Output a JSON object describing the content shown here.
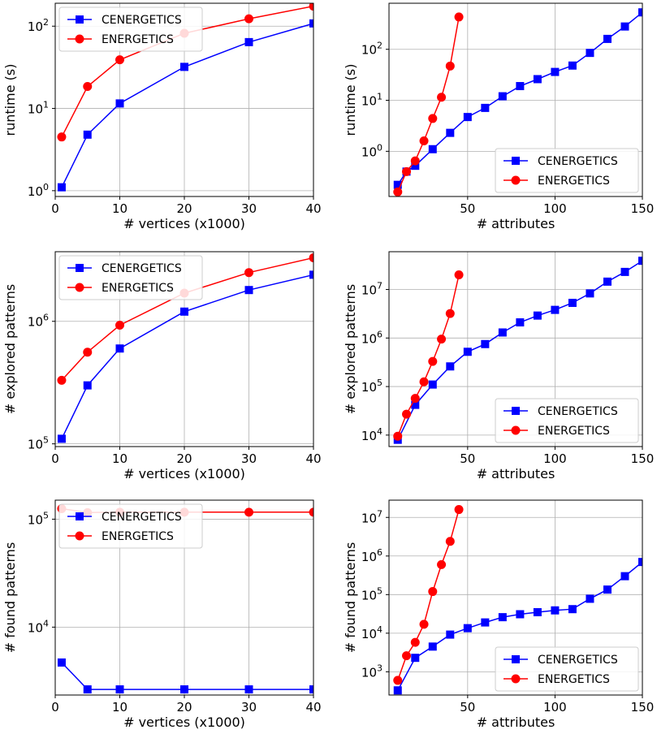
{
  "colors": {
    "cenergetics": "#0000ff",
    "energetics": "#ff0000",
    "grid": "#b0b0b0"
  },
  "chart_data": [
    {
      "type": "line",
      "xlabel": "# vertices (x1000)",
      "ylabel": "runtime (s)",
      "yscale": "log",
      "xlim": [
        0,
        40
      ],
      "ylim": [
        0.85,
        190
      ],
      "xticks": [
        0,
        10,
        20,
        30,
        40
      ],
      "yticks": [
        {
          "v": 1,
          "exp": "0"
        },
        {
          "v": 10,
          "exp": "1"
        },
        {
          "v": 100,
          "exp": "2"
        }
      ],
      "legend_loc": "upper-left",
      "grid": true,
      "series": [
        {
          "name": "CENERGETICS",
          "color": "#0000ff",
          "marker": "square",
          "x": [
            1,
            5,
            10,
            20,
            30,
            40
          ],
          "y": [
            1.1,
            4.8,
            11.5,
            32,
            64,
            108
          ]
        },
        {
          "name": "ENERGETICS",
          "color": "#ff0000",
          "marker": "circle",
          "x": [
            1,
            5,
            10,
            20,
            30,
            40
          ],
          "y": [
            4.5,
            18.5,
            39,
            82,
            123,
            175
          ]
        }
      ]
    },
    {
      "type": "line",
      "xlabel": "# attributes",
      "ylabel": "runtime (s)",
      "yscale": "log",
      "xlim": [
        5,
        150
      ],
      "ylim": [
        0.13,
        800
      ],
      "xticks": [
        50,
        100,
        150
      ],
      "yticks": [
        {
          "v": 1,
          "exp": "0"
        },
        {
          "v": 10,
          "exp": "1"
        },
        {
          "v": 100,
          "exp": "2"
        }
      ],
      "legend_loc": "lower-right",
      "grid": true,
      "series": [
        {
          "name": "CENERGETICS",
          "color": "#0000ff",
          "marker": "square",
          "x": [
            10,
            15,
            20,
            30,
            40,
            50,
            60,
            70,
            80,
            90,
            100,
            110,
            120,
            130,
            140,
            150
          ],
          "y": [
            0.22,
            0.4,
            0.52,
            1.1,
            2.3,
            4.7,
            7.1,
            12,
            19,
            26,
            36,
            48,
            85,
            160,
            280,
            530
          ]
        },
        {
          "name": "ENERGETICS",
          "color": "#ff0000",
          "marker": "circle",
          "x": [
            10,
            15,
            20,
            25,
            30,
            35,
            40,
            45
          ],
          "y": [
            0.16,
            0.4,
            0.65,
            1.6,
            4.4,
            11.5,
            47,
            430
          ]
        }
      ]
    },
    {
      "type": "line",
      "xlabel": "# vertices (x1000)",
      "ylabel": "# explored patterns",
      "yscale": "log",
      "xlim": [
        0,
        40
      ],
      "ylim": [
        95000,
        3700000
      ],
      "xticks": [
        0,
        10,
        20,
        30,
        40
      ],
      "yticks": [
        {
          "v": 100000,
          "exp": "5"
        },
        {
          "v": 1000000,
          "exp": "6"
        }
      ],
      "legend_loc": "upper-left",
      "grid": true,
      "series": [
        {
          "name": "CENERGETICS",
          "color": "#0000ff",
          "marker": "square",
          "x": [
            1,
            5,
            10,
            20,
            30,
            40
          ],
          "y": [
            110000,
            300000,
            600000,
            1200000,
            1800000,
            2400000
          ]
        },
        {
          "name": "ENERGETICS",
          "color": "#ff0000",
          "marker": "circle",
          "x": [
            1,
            5,
            10,
            20,
            30,
            40
          ],
          "y": [
            330000,
            560000,
            930000,
            1700000,
            2500000,
            3300000
          ]
        }
      ]
    },
    {
      "type": "line",
      "xlabel": "# attributes",
      "ylabel": "# explored patterns",
      "yscale": "log",
      "xlim": [
        5,
        150
      ],
      "ylim": [
        5800,
        60000000
      ],
      "xticks": [
        50,
        100,
        150
      ],
      "yticks": [
        {
          "v": 10000,
          "exp": "4"
        },
        {
          "v": 100000,
          "exp": "5"
        },
        {
          "v": 1000000,
          "exp": "6"
        },
        {
          "v": 10000000,
          "exp": "7"
        }
      ],
      "legend_loc": "lower-right",
      "grid": true,
      "series": [
        {
          "name": "CENERGETICS",
          "color": "#0000ff",
          "marker": "square",
          "x": [
            10,
            20,
            30,
            40,
            50,
            60,
            70,
            80,
            90,
            100,
            110,
            120,
            130,
            140,
            150
          ],
          "y": [
            8000,
            42000,
            110000,
            260000,
            520000,
            750000,
            1300000,
            2100000,
            2900000,
            3800000,
            5300000,
            8300000,
            14500000,
            23000000,
            39000000
          ]
        },
        {
          "name": "ENERGETICS",
          "color": "#ff0000",
          "marker": "circle",
          "x": [
            10,
            15,
            20,
            25,
            30,
            35,
            40,
            45
          ],
          "y": [
            9500,
            27000,
            57000,
            125000,
            330000,
            950000,
            3200000,
            20000000
          ]
        }
      ]
    },
    {
      "type": "line",
      "xlabel": "# vertices (x1000)",
      "ylabel": "# found patterns",
      "yscale": "log",
      "xlim": [
        0,
        40
      ],
      "ylim": [
        2350,
        150000
      ],
      "xticks": [
        0,
        10,
        20,
        30,
        40
      ],
      "yticks": [
        {
          "v": 10000,
          "exp": "4"
        },
        {
          "v": 100000,
          "exp": "5"
        }
      ],
      "legend_loc": "upper-left",
      "grid": true,
      "series": [
        {
          "name": "CENERGETICS",
          "color": "#0000ff",
          "marker": "square",
          "x": [
            1,
            5,
            10,
            20,
            30,
            40
          ],
          "y": [
            4700,
            2650,
            2650,
            2650,
            2650,
            2650
          ]
        },
        {
          "name": "ENERGETICS",
          "color": "#ff0000",
          "marker": "circle",
          "x": [
            1,
            5,
            10,
            20,
            30,
            40
          ],
          "y": [
            125000,
            115000,
            116000,
            116000,
            116000,
            116000
          ]
        }
      ]
    },
    {
      "type": "line",
      "xlabel": "# attributes",
      "ylabel": "# found patterns",
      "yscale": "log",
      "xlim": [
        5,
        150
      ],
      "ylim": [
        250,
        28000000
      ],
      "xticks": [
        50,
        100,
        150
      ],
      "yticks": [
        {
          "v": 1000,
          "exp": "3"
        },
        {
          "v": 10000,
          "exp": "4"
        },
        {
          "v": 100000,
          "exp": "5"
        },
        {
          "v": 1000000,
          "exp": "6"
        },
        {
          "v": 10000000,
          "exp": "7"
        }
      ],
      "legend_loc": "lower-right",
      "grid": true,
      "series": [
        {
          "name": "CENERGETICS",
          "color": "#0000ff",
          "marker": "square",
          "x": [
            10,
            20,
            30,
            40,
            50,
            60,
            70,
            80,
            90,
            100,
            110,
            120,
            130,
            140,
            150
          ],
          "y": [
            330,
            2300,
            4500,
            9200,
            13500,
            19000,
            26000,
            31000,
            35000,
            39000,
            42000,
            78000,
            135000,
            300000,
            700000
          ]
        },
        {
          "name": "ENERGETICS",
          "color": "#ff0000",
          "marker": "circle",
          "x": [
            10,
            15,
            20,
            25,
            30,
            35,
            40,
            45
          ],
          "y": [
            600,
            2600,
            5800,
            17000,
            120000,
            600000,
            2400000,
            16000000
          ]
        }
      ]
    }
  ]
}
